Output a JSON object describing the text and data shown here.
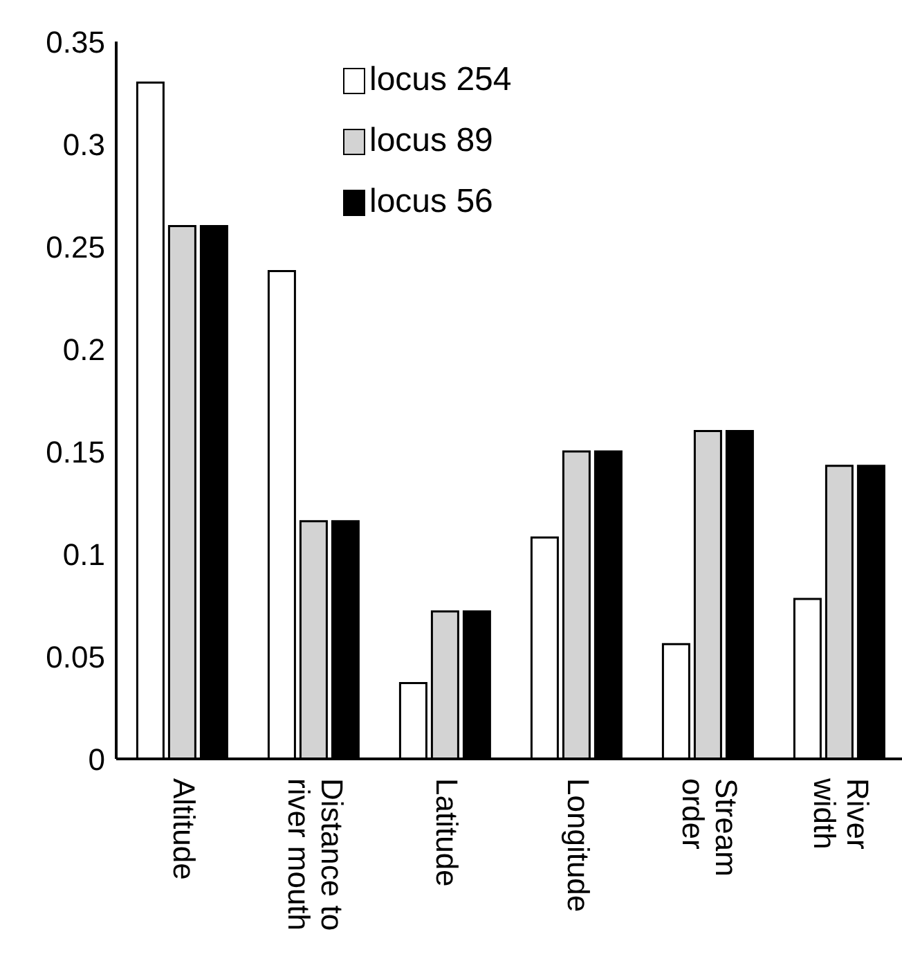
{
  "chart_data": {
    "type": "bar",
    "categories": [
      "Altitude",
      "Distance to\nriver mouth",
      "Latitude",
      "Longitude",
      "Stream\norder",
      "River\nwidth"
    ],
    "series": [
      {
        "name": "locus 254",
        "color": "#ffffff",
        "values": [
          0.33,
          0.238,
          0.037,
          0.108,
          0.056,
          0.078
        ]
      },
      {
        "name": "locus 89",
        "color": "#d3d3d3",
        "values": [
          0.26,
          0.116,
          0.072,
          0.15,
          0.16,
          0.143
        ]
      },
      {
        "name": "locus 56",
        "color": "#000000",
        "values": [
          0.26,
          0.116,
          0.072,
          0.15,
          0.16,
          0.143
        ]
      }
    ],
    "ylim": [
      0,
      0.35
    ],
    "yticks": [
      0,
      0.05,
      0.1,
      0.15,
      0.2,
      0.25,
      0.3,
      0.35
    ],
    "grid": false,
    "legend": "top"
  }
}
